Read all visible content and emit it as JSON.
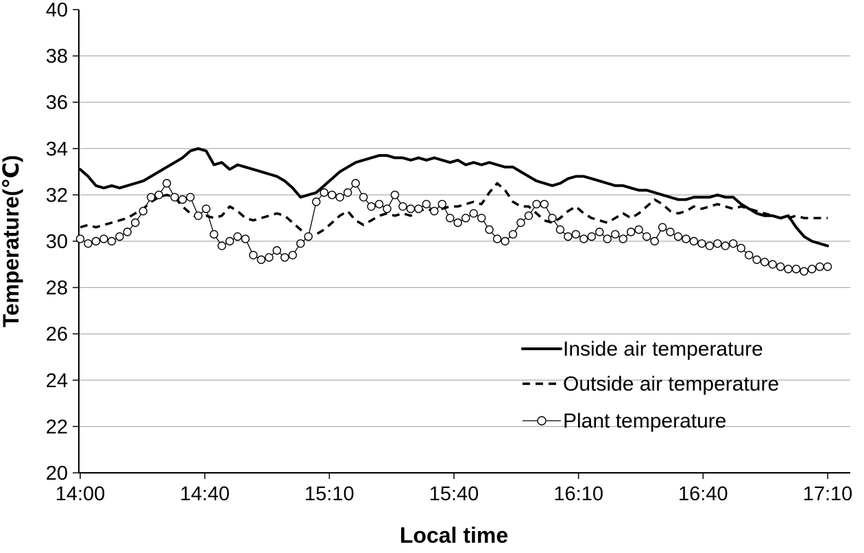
{
  "chart_data": {
    "type": "line",
    "title": "",
    "xlabel": "Local time",
    "ylabel": "Temperature(℃)",
    "ylim": [
      20,
      40
    ],
    "y_ticks": [
      20,
      22,
      24,
      26,
      28,
      30,
      32,
      34,
      36,
      38,
      40
    ],
    "x_tick_labels": [
      "14:00",
      "14:40",
      "15:10",
      "15:40",
      "16:10",
      "16:40",
      "17:10"
    ],
    "grid": "horizontal-only",
    "legend_position": "inside-right",
    "series": [
      {
        "name": "Inside air temperature",
        "style": "solid-thick",
        "color": "#000000",
        "values": [
          33.1,
          32.8,
          32.4,
          32.3,
          32.4,
          32.3,
          32.4,
          32.5,
          32.6,
          32.8,
          33.0,
          33.2,
          33.4,
          33.6,
          33.9,
          34.0,
          33.9,
          33.3,
          33.4,
          33.1,
          33.3,
          33.2,
          33.1,
          33.0,
          32.9,
          32.8,
          32.6,
          32.3,
          31.9,
          32.0,
          32.1,
          32.4,
          32.7,
          33.0,
          33.2,
          33.4,
          33.5,
          33.6,
          33.7,
          33.7,
          33.6,
          33.6,
          33.5,
          33.6,
          33.5,
          33.6,
          33.5,
          33.4,
          33.5,
          33.3,
          33.4,
          33.3,
          33.4,
          33.3,
          33.2,
          33.2,
          33.0,
          32.8,
          32.6,
          32.5,
          32.4,
          32.5,
          32.7,
          32.8,
          32.8,
          32.7,
          32.6,
          32.5,
          32.4,
          32.4,
          32.3,
          32.2,
          32.2,
          32.1,
          32.0,
          31.9,
          31.8,
          31.8,
          31.9,
          31.9,
          31.9,
          32.0,
          31.9,
          31.9,
          31.6,
          31.4,
          31.2,
          31.1,
          31.1,
          31.0,
          31.1,
          30.6,
          30.2,
          30.0,
          29.9,
          29.8
        ]
      },
      {
        "name": "Outside air temperature",
        "style": "dashed",
        "color": "#000000",
        "values": [
          30.6,
          30.7,
          30.6,
          30.7,
          30.8,
          30.9,
          31.0,
          31.2,
          31.4,
          31.7,
          31.9,
          32.0,
          31.9,
          31.5,
          31.2,
          31.0,
          31.1,
          31.0,
          31.1,
          31.5,
          31.3,
          31.0,
          30.9,
          31.0,
          31.1,
          31.2,
          31.1,
          30.8,
          30.5,
          30.2,
          30.3,
          30.5,
          30.8,
          31.1,
          31.3,
          30.9,
          30.7,
          30.9,
          31.1,
          31.2,
          31.1,
          31.2,
          31.1,
          31.3,
          31.4,
          31.3,
          31.4,
          31.5,
          31.5,
          31.6,
          31.7,
          31.6,
          32.1,
          32.5,
          32.2,
          31.7,
          31.5,
          31.5,
          31.2,
          30.9,
          30.8,
          31.0,
          31.3,
          31.5,
          31.2,
          31.0,
          30.9,
          30.8,
          31.0,
          31.2,
          31.0,
          31.2,
          31.5,
          31.8,
          31.6,
          31.3,
          31.2,
          31.3,
          31.5,
          31.4,
          31.5,
          31.6,
          31.5,
          31.4,
          31.5,
          31.4,
          31.3,
          31.2,
          31.1,
          31.0,
          31.0,
          31.1,
          31.0,
          31.0,
          31.0,
          31.0
        ]
      },
      {
        "name": "Plant temperature",
        "style": "thin-open-circle-markers",
        "color": "#000000",
        "values": [
          30.1,
          29.9,
          30.0,
          30.1,
          30.0,
          30.2,
          30.4,
          30.8,
          31.3,
          31.9,
          32.0,
          32.5,
          31.9,
          31.8,
          31.9,
          31.1,
          31.4,
          30.3,
          29.8,
          30.0,
          30.2,
          30.1,
          29.4,
          29.2,
          29.3,
          29.6,
          29.3,
          29.4,
          29.9,
          30.2,
          31.7,
          32.1,
          32.0,
          31.9,
          32.1,
          32.5,
          31.9,
          31.5,
          31.6,
          31.4,
          32.0,
          31.5,
          31.4,
          31.4,
          31.6,
          31.3,
          31.6,
          31.0,
          30.8,
          31.0,
          31.2,
          31.0,
          30.5,
          30.1,
          30.0,
          30.3,
          30.8,
          31.1,
          31.6,
          31.6,
          31.0,
          30.5,
          30.2,
          30.3,
          30.1,
          30.2,
          30.4,
          30.1,
          30.3,
          30.1,
          30.4,
          30.5,
          30.2,
          30.0,
          30.6,
          30.4,
          30.2,
          30.1,
          30.0,
          29.9,
          29.8,
          29.9,
          29.8,
          29.9,
          29.7,
          29.4,
          29.2,
          29.1,
          29.0,
          28.9,
          28.8,
          28.8,
          28.7,
          28.8,
          28.9,
          28.9
        ]
      }
    ]
  }
}
